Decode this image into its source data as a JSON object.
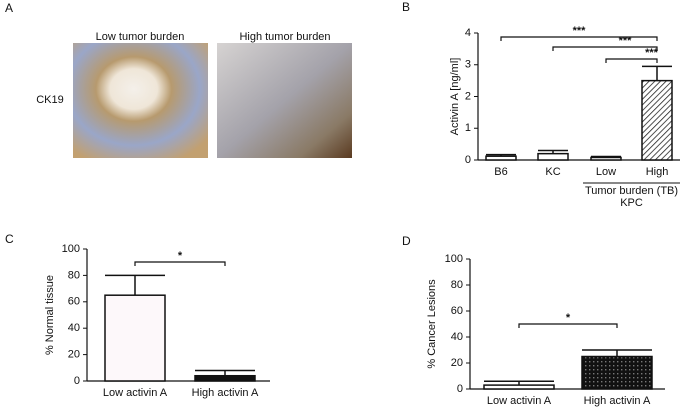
{
  "panel_a": {
    "letter": "A",
    "left_title": "Low tumor burden",
    "right_title": "High tumor burden",
    "row_label": "CK19"
  },
  "chart_data": [
    {
      "type": "bar",
      "letter": "B",
      "y_label": "Activin A [ng/ml]",
      "categories": [
        "B6",
        "KC",
        "Low",
        "High"
      ],
      "values": [
        0.12,
        0.2,
        0.08,
        2.5
      ],
      "errors": [
        0.05,
        0.1,
        0.03,
        0.45
      ],
      "colors": [
        "#ffffff",
        "#ffffff",
        "#ffffff",
        "url(#hatch)"
      ],
      "group_label": "Tumor burden (TB)",
      "group_sublabel": "KPC",
      "annotations": [
        "***",
        "***",
        "***"
      ],
      "ylim": [
        0,
        4
      ],
      "yticks": [
        0,
        1,
        2,
        3,
        4
      ]
    },
    {
      "type": "bar",
      "letter": "C",
      "y_label": "% Normal tissue",
      "categories": [
        "Low activin A",
        "High activin A"
      ],
      "values": [
        65,
        4
      ],
      "errors": [
        15,
        4
      ],
      "colors": [
        "#fdf8fa",
        "#111111"
      ],
      "annotations": [
        "*"
      ],
      "ylim": [
        0,
        100
      ],
      "yticks": [
        0,
        20,
        40,
        60,
        80,
        100
      ]
    },
    {
      "type": "bar",
      "letter": "D",
      "y_label": "% Cancer Lesions",
      "categories": [
        "Low activin A",
        "High activin A"
      ],
      "values": [
        3,
        25
      ],
      "errors": [
        3,
        5
      ],
      "colors": [
        "#ffffff",
        "url(#grid)"
      ],
      "annotations": [
        "*"
      ],
      "ylim": [
        0,
        100
      ],
      "yticks": [
        0,
        20,
        40,
        60,
        80,
        100
      ]
    }
  ]
}
